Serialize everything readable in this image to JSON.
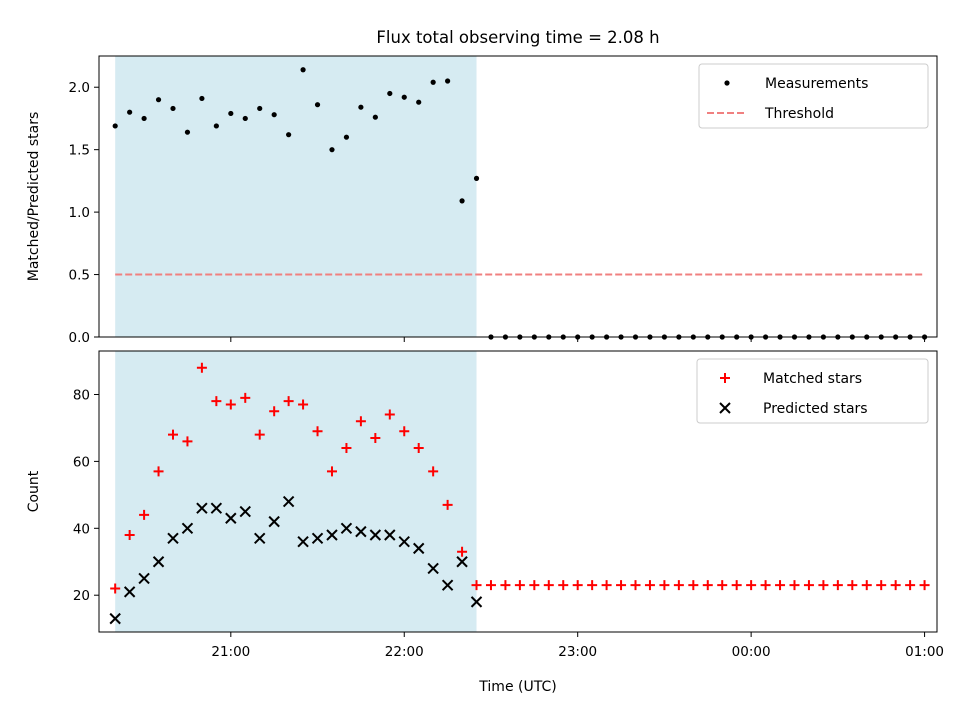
{
  "title": "Flux total observing time = 2.08 h",
  "shading_color": "#add8e6",
  "chart_data": [
    {
      "type": "scatter",
      "ylabel": "Matched/Predicted stars",
      "ylim": [
        0,
        2.25
      ],
      "yticks": [
        0.0,
        0.5,
        1.0,
        1.5,
        2.0
      ],
      "ytick_labels": [
        "0.0",
        "0.5",
        "1.0",
        "1.5",
        "2.0"
      ],
      "x_ticks_shown": false,
      "shaded_interval": [
        "20:20",
        "22:25"
      ],
      "legend_position": "upper right",
      "series": [
        {
          "name": "Measurements",
          "style": "dot",
          "color": "#000000",
          "x": [
            "20:20",
            "20:25",
            "20:30",
            "20:35",
            "20:40",
            "20:45",
            "20:50",
            "20:55",
            "21:00",
            "21:05",
            "21:10",
            "21:15",
            "21:20",
            "21:25",
            "21:30",
            "21:35",
            "21:40",
            "21:45",
            "21:50",
            "21:55",
            "22:00",
            "22:05",
            "22:10",
            "22:15",
            "22:20",
            "22:25",
            "22:30",
            "22:35",
            "22:40",
            "22:45",
            "22:50",
            "22:55",
            "23:00",
            "23:05",
            "23:10",
            "23:15",
            "23:20",
            "23:25",
            "23:30",
            "23:35",
            "23:40",
            "23:45",
            "23:50",
            "23:55",
            "00:00",
            "00:05",
            "00:10",
            "00:15",
            "00:20",
            "00:25",
            "00:30",
            "00:35",
            "00:40",
            "00:45",
            "00:50",
            "00:55",
            "01:00"
          ],
          "y": [
            1.69,
            1.8,
            1.75,
            1.9,
            1.83,
            1.64,
            1.91,
            1.69,
            1.79,
            1.75,
            1.83,
            1.78,
            1.62,
            2.14,
            1.86,
            1.5,
            1.6,
            1.84,
            1.76,
            1.95,
            1.92,
            1.88,
            2.04,
            2.05,
            1.09,
            1.27,
            0,
            0,
            0,
            0,
            0,
            0,
            0,
            0,
            0,
            0,
            0,
            0,
            0,
            0,
            0,
            0,
            0,
            0,
            0,
            0,
            0,
            0,
            0,
            0,
            0,
            0,
            0,
            0,
            0,
            0,
            0
          ]
        },
        {
          "name": "Threshold",
          "style": "dashed-line",
          "color": "#f08080",
          "x": [
            "20:20",
            "01:00"
          ],
          "y": [
            0.5,
            0.5
          ]
        }
      ]
    },
    {
      "type": "scatter",
      "xlabel": "Time (UTC)",
      "ylabel": "Count",
      "ylim": [
        9,
        93
      ],
      "yticks": [
        20,
        40,
        60,
        80
      ],
      "ytick_labels": [
        "20",
        "40",
        "60",
        "80"
      ],
      "x_ticks": [
        "21:00",
        "22:00",
        "23:00",
        "00:00",
        "01:00"
      ],
      "x_tick_labels": [
        "21:00",
        "22:00",
        "23:00",
        "00:00",
        "01:00"
      ],
      "shaded_interval": [
        "20:20",
        "22:25"
      ],
      "legend_position": "upper right",
      "series": [
        {
          "name": "Matched stars",
          "style": "plus",
          "color": "#ff0000",
          "x": [
            "20:20",
            "20:25",
            "20:30",
            "20:35",
            "20:40",
            "20:45",
            "20:50",
            "20:55",
            "21:00",
            "21:05",
            "21:10",
            "21:15",
            "21:20",
            "21:25",
            "21:30",
            "21:35",
            "21:40",
            "21:45",
            "21:50",
            "21:55",
            "22:00",
            "22:05",
            "22:10",
            "22:15",
            "22:20",
            "22:25",
            "22:30",
            "22:35",
            "22:40",
            "22:45",
            "22:50",
            "22:55",
            "23:00",
            "23:05",
            "23:10",
            "23:15",
            "23:20",
            "23:25",
            "23:30",
            "23:35",
            "23:40",
            "23:45",
            "23:50",
            "23:55",
            "00:00",
            "00:05",
            "00:10",
            "00:15",
            "00:20",
            "00:25",
            "00:30",
            "00:35",
            "00:40",
            "00:45",
            "00:50",
            "00:55",
            "01:00"
          ],
          "y": [
            22,
            38,
            44,
            57,
            68,
            66,
            88,
            78,
            77,
            79,
            68,
            75,
            78,
            77,
            69,
            57,
            64,
            72,
            67,
            74,
            69,
            64,
            57,
            47,
            33,
            23,
            23,
            23,
            23,
            23,
            23,
            23,
            23,
            23,
            23,
            23,
            23,
            23,
            23,
            23,
            23,
            23,
            23,
            23,
            23,
            23,
            23,
            23,
            23,
            23,
            23,
            23,
            23,
            23,
            23,
            23,
            23
          ]
        },
        {
          "name": "Predicted stars",
          "style": "x",
          "color": "#000000",
          "x": [
            "20:20",
            "20:25",
            "20:30",
            "20:35",
            "20:40",
            "20:45",
            "20:50",
            "20:55",
            "21:00",
            "21:05",
            "21:10",
            "21:15",
            "21:20",
            "21:25",
            "21:30",
            "21:35",
            "21:40",
            "21:45",
            "21:50",
            "21:55",
            "22:00",
            "22:05",
            "22:10",
            "22:15",
            "22:20",
            "22:25"
          ],
          "y": [
            13,
            21,
            25,
            30,
            37,
            40,
            46,
            46,
            43,
            45,
            37,
            42,
            48,
            36,
            37,
            38,
            40,
            39,
            38,
            38,
            36,
            34,
            28,
            23,
            30,
            18
          ]
        }
      ]
    }
  ]
}
